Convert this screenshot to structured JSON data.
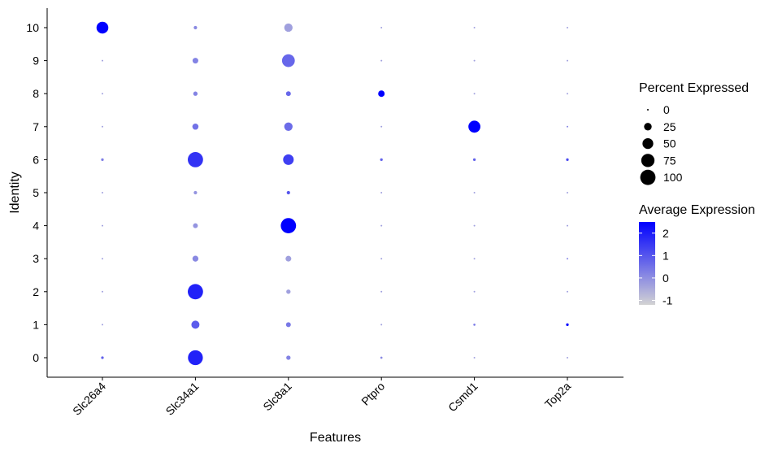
{
  "chart_data": {
    "type": "dotplot",
    "xlabel": "Features",
    "ylabel": "Identity",
    "features": [
      "Slc26a4",
      "Slc34a1",
      "Slc8a1",
      "Ptpro",
      "Csmd1",
      "Top2a"
    ],
    "identities": [
      "0",
      "1",
      "2",
      "3",
      "4",
      "5",
      "6",
      "7",
      "8",
      "9",
      "10"
    ],
    "points": [
      {
        "feature": "Slc26a4",
        "identity": "0",
        "pct": 3,
        "avg_exp": 0.8
      },
      {
        "feature": "Slc26a4",
        "identity": "1",
        "pct": 1,
        "avg_exp": -0.3
      },
      {
        "feature": "Slc26a4",
        "identity": "2",
        "pct": 1,
        "avg_exp": -0.3
      },
      {
        "feature": "Slc26a4",
        "identity": "3",
        "pct": 1,
        "avg_exp": -0.3
      },
      {
        "feature": "Slc26a4",
        "identity": "4",
        "pct": 1,
        "avg_exp": -0.3
      },
      {
        "feature": "Slc26a4",
        "identity": "5",
        "pct": 1,
        "avg_exp": -0.3
      },
      {
        "feature": "Slc26a4",
        "identity": "6",
        "pct": 3,
        "avg_exp": 0.3
      },
      {
        "feature": "Slc26a4",
        "identity": "7",
        "pct": 1,
        "avg_exp": -0.3
      },
      {
        "feature": "Slc26a4",
        "identity": "8",
        "pct": 1,
        "avg_exp": -0.3
      },
      {
        "feature": "Slc26a4",
        "identity": "9",
        "pct": 1,
        "avg_exp": -0.3
      },
      {
        "feature": "Slc26a4",
        "identity": "10",
        "pct": 60,
        "avg_exp": 2.5
      },
      {
        "feature": "Slc34a1",
        "identity": "0",
        "pct": 95,
        "avg_exp": 1.9
      },
      {
        "feature": "Slc34a1",
        "identity": "1",
        "pct": 28,
        "avg_exp": 0.9
      },
      {
        "feature": "Slc34a1",
        "identity": "2",
        "pct": 100,
        "avg_exp": 1.9
      },
      {
        "feature": "Slc34a1",
        "identity": "3",
        "pct": 15,
        "avg_exp": 0.1
      },
      {
        "feature": "Slc34a1",
        "identity": "4",
        "pct": 10,
        "avg_exp": -0.1
      },
      {
        "feature": "Slc34a1",
        "identity": "5",
        "pct": 5,
        "avg_exp": -0.1
      },
      {
        "feature": "Slc34a1",
        "identity": "6",
        "pct": 100,
        "avg_exp": 1.6
      },
      {
        "feature": "Slc34a1",
        "identity": "7",
        "pct": 16,
        "avg_exp": 0.5
      },
      {
        "feature": "Slc34a1",
        "identity": "8",
        "pct": 8,
        "avg_exp": 0.2
      },
      {
        "feature": "Slc34a1",
        "identity": "9",
        "pct": 14,
        "avg_exp": 0.2
      },
      {
        "feature": "Slc34a1",
        "identity": "10",
        "pct": 5,
        "avg_exp": 0.1
      },
      {
        "feature": "Slc8a1",
        "identity": "0",
        "pct": 8,
        "avg_exp": 0.2
      },
      {
        "feature": "Slc8a1",
        "identity": "1",
        "pct": 10,
        "avg_exp": 0.4
      },
      {
        "feature": "Slc8a1",
        "identity": "2",
        "pct": 8,
        "avg_exp": -0.3
      },
      {
        "feature": "Slc8a1",
        "identity": "3",
        "pct": 14,
        "avg_exp": -0.3
      },
      {
        "feature": "Slc8a1",
        "identity": "4",
        "pct": 100,
        "avg_exp": 2.5
      },
      {
        "feature": "Slc8a1",
        "identity": "5",
        "pct": 5,
        "avg_exp": 1.0
      },
      {
        "feature": "Slc8a1",
        "identity": "6",
        "pct": 48,
        "avg_exp": 1.4
      },
      {
        "feature": "Slc8a1",
        "identity": "7",
        "pct": 30,
        "avg_exp": 0.6
      },
      {
        "feature": "Slc8a1",
        "identity": "8",
        "pct": 10,
        "avg_exp": 0.7
      },
      {
        "feature": "Slc8a1",
        "identity": "9",
        "pct": 70,
        "avg_exp": 0.7
      },
      {
        "feature": "Slc8a1",
        "identity": "10",
        "pct": 30,
        "avg_exp": -0.3
      },
      {
        "feature": "Ptpro",
        "identity": "0",
        "pct": 2,
        "avg_exp": 0.1
      },
      {
        "feature": "Ptpro",
        "identity": "1",
        "pct": 1,
        "avg_exp": -0.3
      },
      {
        "feature": "Ptpro",
        "identity": "2",
        "pct": 1,
        "avg_exp": -0.3
      },
      {
        "feature": "Ptpro",
        "identity": "3",
        "pct": 1,
        "avg_exp": -0.3
      },
      {
        "feature": "Ptpro",
        "identity": "4",
        "pct": 1,
        "avg_exp": -0.3
      },
      {
        "feature": "Ptpro",
        "identity": "5",
        "pct": 1,
        "avg_exp": -0.3
      },
      {
        "feature": "Ptpro",
        "identity": "6",
        "pct": 3,
        "avg_exp": 0.8
      },
      {
        "feature": "Ptpro",
        "identity": "7",
        "pct": 1,
        "avg_exp": -0.3
      },
      {
        "feature": "Ptpro",
        "identity": "8",
        "pct": 18,
        "avg_exp": 2.5
      },
      {
        "feature": "Ptpro",
        "identity": "9",
        "pct": 1,
        "avg_exp": -0.3
      },
      {
        "feature": "Ptpro",
        "identity": "10",
        "pct": 1,
        "avg_exp": -0.3
      },
      {
        "feature": "Csmd1",
        "identity": "0",
        "pct": 1,
        "avg_exp": -0.3
      },
      {
        "feature": "Csmd1",
        "identity": "1",
        "pct": 2,
        "avg_exp": 0.4
      },
      {
        "feature": "Csmd1",
        "identity": "2",
        "pct": 1,
        "avg_exp": -0.3
      },
      {
        "feature": "Csmd1",
        "identity": "3",
        "pct": 1,
        "avg_exp": -0.3
      },
      {
        "feature": "Csmd1",
        "identity": "4",
        "pct": 1,
        "avg_exp": -0.3
      },
      {
        "feature": "Csmd1",
        "identity": "5",
        "pct": 1,
        "avg_exp": -0.3
      },
      {
        "feature": "Csmd1",
        "identity": "6",
        "pct": 3,
        "avg_exp": 0.8
      },
      {
        "feature": "Csmd1",
        "identity": "7",
        "pct": 62,
        "avg_exp": 2.5
      },
      {
        "feature": "Csmd1",
        "identity": "8",
        "pct": 1,
        "avg_exp": -0.3
      },
      {
        "feature": "Csmd1",
        "identity": "9",
        "pct": 1,
        "avg_exp": -0.3
      },
      {
        "feature": "Csmd1",
        "identity": "10",
        "pct": 1,
        "avg_exp": -0.3
      },
      {
        "feature": "Top2a",
        "identity": "0",
        "pct": 1,
        "avg_exp": -0.3
      },
      {
        "feature": "Top2a",
        "identity": "1",
        "pct": 3,
        "avg_exp": 2.5
      },
      {
        "feature": "Top2a",
        "identity": "2",
        "pct": 1,
        "avg_exp": -0.3
      },
      {
        "feature": "Top2a",
        "identity": "3",
        "pct": 1,
        "avg_exp": 0.2
      },
      {
        "feature": "Top2a",
        "identity": "4",
        "pct": 1,
        "avg_exp": -0.3
      },
      {
        "feature": "Top2a",
        "identity": "5",
        "pct": 1,
        "avg_exp": -0.3
      },
      {
        "feature": "Top2a",
        "identity": "6",
        "pct": 3,
        "avg_exp": 1.2
      },
      {
        "feature": "Top2a",
        "identity": "7",
        "pct": 1,
        "avg_exp": 0.2
      },
      {
        "feature": "Top2a",
        "identity": "8",
        "pct": 1,
        "avg_exp": -0.3
      },
      {
        "feature": "Top2a",
        "identity": "9",
        "pct": 1,
        "avg_exp": -0.3
      },
      {
        "feature": "Top2a",
        "identity": "10",
        "pct": 1,
        "avg_exp": -0.3
      }
    ],
    "size_legend": {
      "title": "Percent Expressed",
      "breaks": [
        0,
        25,
        50,
        75,
        100
      ],
      "labels": [
        "0",
        "25",
        "50",
        "75",
        "100"
      ]
    },
    "color_legend": {
      "title": "Average Expression",
      "range": [
        -1.2,
        2.5
      ],
      "breaks": [
        -1,
        0,
        1,
        2
      ],
      "labels": [
        "-1",
        "0",
        "1",
        "2"
      ],
      "low_color": "#d3d3d3",
      "high_color": "#0000ff"
    },
    "grid": false,
    "legend_position": "right"
  }
}
